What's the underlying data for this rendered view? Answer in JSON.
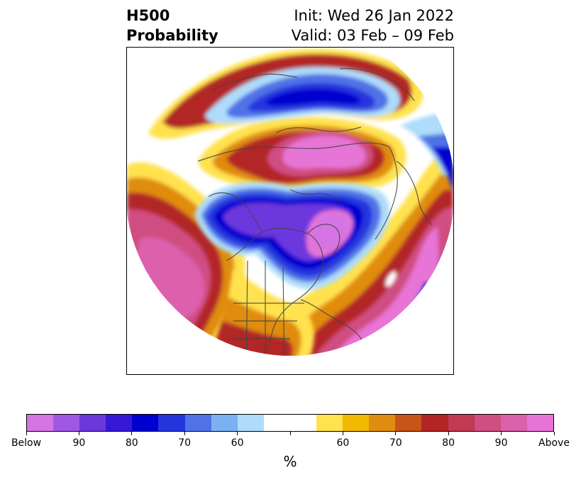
{
  "header": {
    "variable": "H500",
    "product": "Probability",
    "init": "Init: Wed 26 Jan 2022",
    "valid": "Valid: 03 Feb – 09 Feb"
  },
  "map": {
    "projection": "north-polar-stereographic",
    "background_color": "#ffffff",
    "coastline_color": "#444444"
  },
  "colorbar": {
    "unit": "%",
    "labels": [
      "Below",
      "90",
      "80",
      "70",
      "60",
      "60",
      "70",
      "80",
      "90",
      "Above"
    ],
    "below_colors": [
      "#d475e3",
      "#9f58e3",
      "#6c38dd",
      "#3618d6",
      "#0000d0",
      "#2535de",
      "#4f72e6",
      "#7bb1f2",
      "#aedcfa"
    ],
    "neutral_color": "#ffffff",
    "above_colors": [
      "#ffe24d",
      "#f2b800",
      "#e08c10",
      "#c8541a",
      "#b32525",
      "#c13a51",
      "#d04e81",
      "#dc61ab",
      "#e774d6"
    ]
  }
}
